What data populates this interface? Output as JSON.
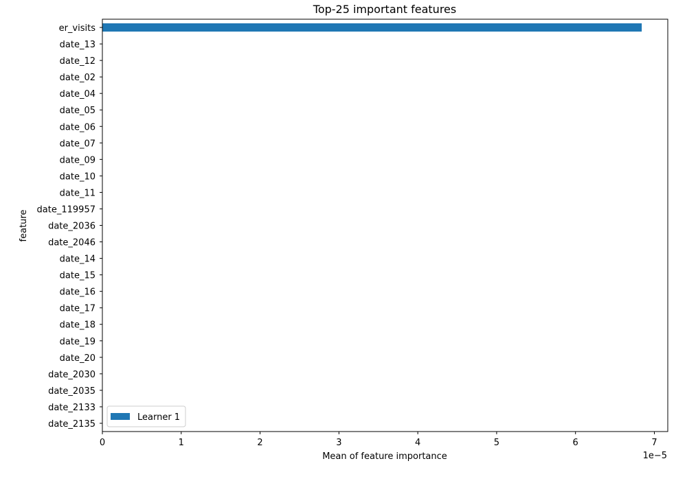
{
  "chart_data": {
    "type": "bar",
    "orientation": "horizontal",
    "title": "Top-25 important features",
    "xlabel": "Mean of feature importance",
    "ylabel": "feature",
    "x_offset_label": "1e−5",
    "x_scale_exponent": -5,
    "xlim": [
      0,
      7.17
    ],
    "xticks": [
      0,
      1,
      2,
      3,
      4,
      5,
      6,
      7
    ],
    "categories": [
      "er_visits",
      "date_13",
      "date_12",
      "date_02",
      "date_04",
      "date_05",
      "date_06",
      "date_07",
      "date_09",
      "date_10",
      "date_11",
      "date_119957",
      "date_2036",
      "date_2046",
      "date_14",
      "date_15",
      "date_16",
      "date_17",
      "date_18",
      "date_19",
      "date_20",
      "date_2030",
      "date_2035",
      "date_2133",
      "date_2135"
    ],
    "series": [
      {
        "name": "Learner 1",
        "color": "#1f77b4",
        "values": [
          6.84,
          0,
          0,
          0,
          0,
          0,
          0,
          0,
          0,
          0,
          0,
          0,
          0,
          0,
          0,
          0,
          0,
          0,
          0,
          0,
          0,
          0,
          0,
          0,
          0
        ]
      }
    ],
    "legend_position": "lower-left",
    "grid": false
  }
}
